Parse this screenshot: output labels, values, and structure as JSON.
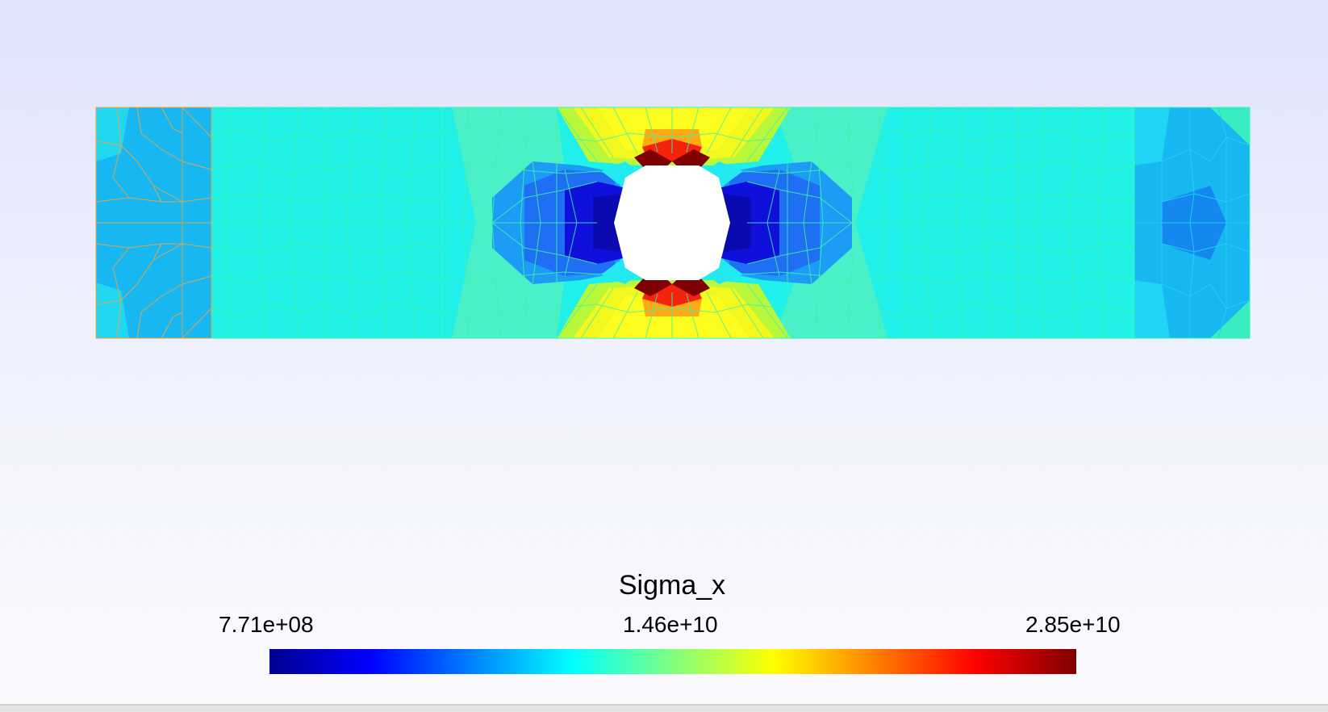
{
  "legend": {
    "title": "Sigma_x",
    "min_label": "7.71e+08",
    "mid_label": "1.46e+10",
    "max_label": "2.85e+10",
    "colormap": [
      "#00008f",
      "#0000ff",
      "#0080ff",
      "#00ffff",
      "#80ff80",
      "#ffff00",
      "#ff8000",
      "#ff0000",
      "#800000"
    ]
  },
  "field_colors": {
    "ends": "#17b8f2",
    "ends_mesh_line": "#f0a340",
    "far_field": "#1ff0ea",
    "mesh_line": "#3ef5a8",
    "near_hole_low": "#0a0acb",
    "near_hole_mid_low": "#1f6ff5",
    "near_hole_high": "#fcfc1e",
    "peak": "#f5220e",
    "peak_max": "#7e0000",
    "hole": "#ffffff"
  }
}
